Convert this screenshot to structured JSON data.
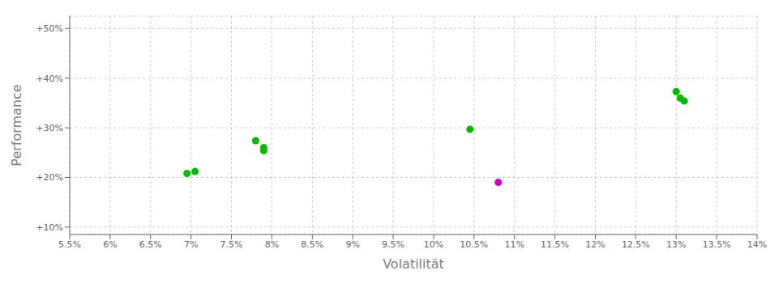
{
  "chart_data": {
    "type": "scatter",
    "x_label": "Volatilität",
    "y_label": "Performance",
    "xlim": [
      0.055,
      0.14
    ],
    "ylim": [
      0.085,
      0.525
    ],
    "xticks": [
      {
        "value": 0.055,
        "label": "5.5%"
      },
      {
        "value": 0.06,
        "label": "6%"
      },
      {
        "value": 0.065,
        "label": "6.5%"
      },
      {
        "value": 0.07,
        "label": "7%"
      },
      {
        "value": 0.075,
        "label": "7.5%"
      },
      {
        "value": 0.08,
        "label": "8%"
      },
      {
        "value": 0.085,
        "label": "8.5%"
      },
      {
        "value": 0.09,
        "label": "9%"
      },
      {
        "value": 0.095,
        "label": "9.5%"
      },
      {
        "value": 0.1,
        "label": "10%"
      },
      {
        "value": 0.105,
        "label": "10.5%"
      },
      {
        "value": 0.11,
        "label": "11%"
      },
      {
        "value": 0.115,
        "label": "11.5%"
      },
      {
        "value": 0.12,
        "label": "12%"
      },
      {
        "value": 0.125,
        "label": "12.5%"
      },
      {
        "value": 0.13,
        "label": "13%"
      },
      {
        "value": 0.135,
        "label": "13.5%"
      },
      {
        "value": 0.14,
        "label": "14%"
      }
    ],
    "yticks": [
      {
        "value": 0.1,
        "label": "+10%"
      },
      {
        "value": 0.2,
        "label": "+20%"
      },
      {
        "value": 0.3,
        "label": "+30%"
      },
      {
        "value": 0.4,
        "label": "+40%"
      },
      {
        "value": 0.5,
        "label": "+50%"
      }
    ],
    "grid": true,
    "series": [
      {
        "color": "#00bb00",
        "x": [
          0.0695,
          0.0705,
          0.078,
          0.079,
          0.079,
          0.1045,
          0.13,
          0.1305,
          0.131
        ],
        "values": [
          0.208,
          0.212,
          0.274,
          0.254,
          0.26,
          0.297,
          0.373,
          0.36,
          0.354
        ]
      },
      {
        "color": "#cc00cc",
        "x": [
          0.108
        ],
        "values": [
          0.19
        ]
      }
    ]
  }
}
